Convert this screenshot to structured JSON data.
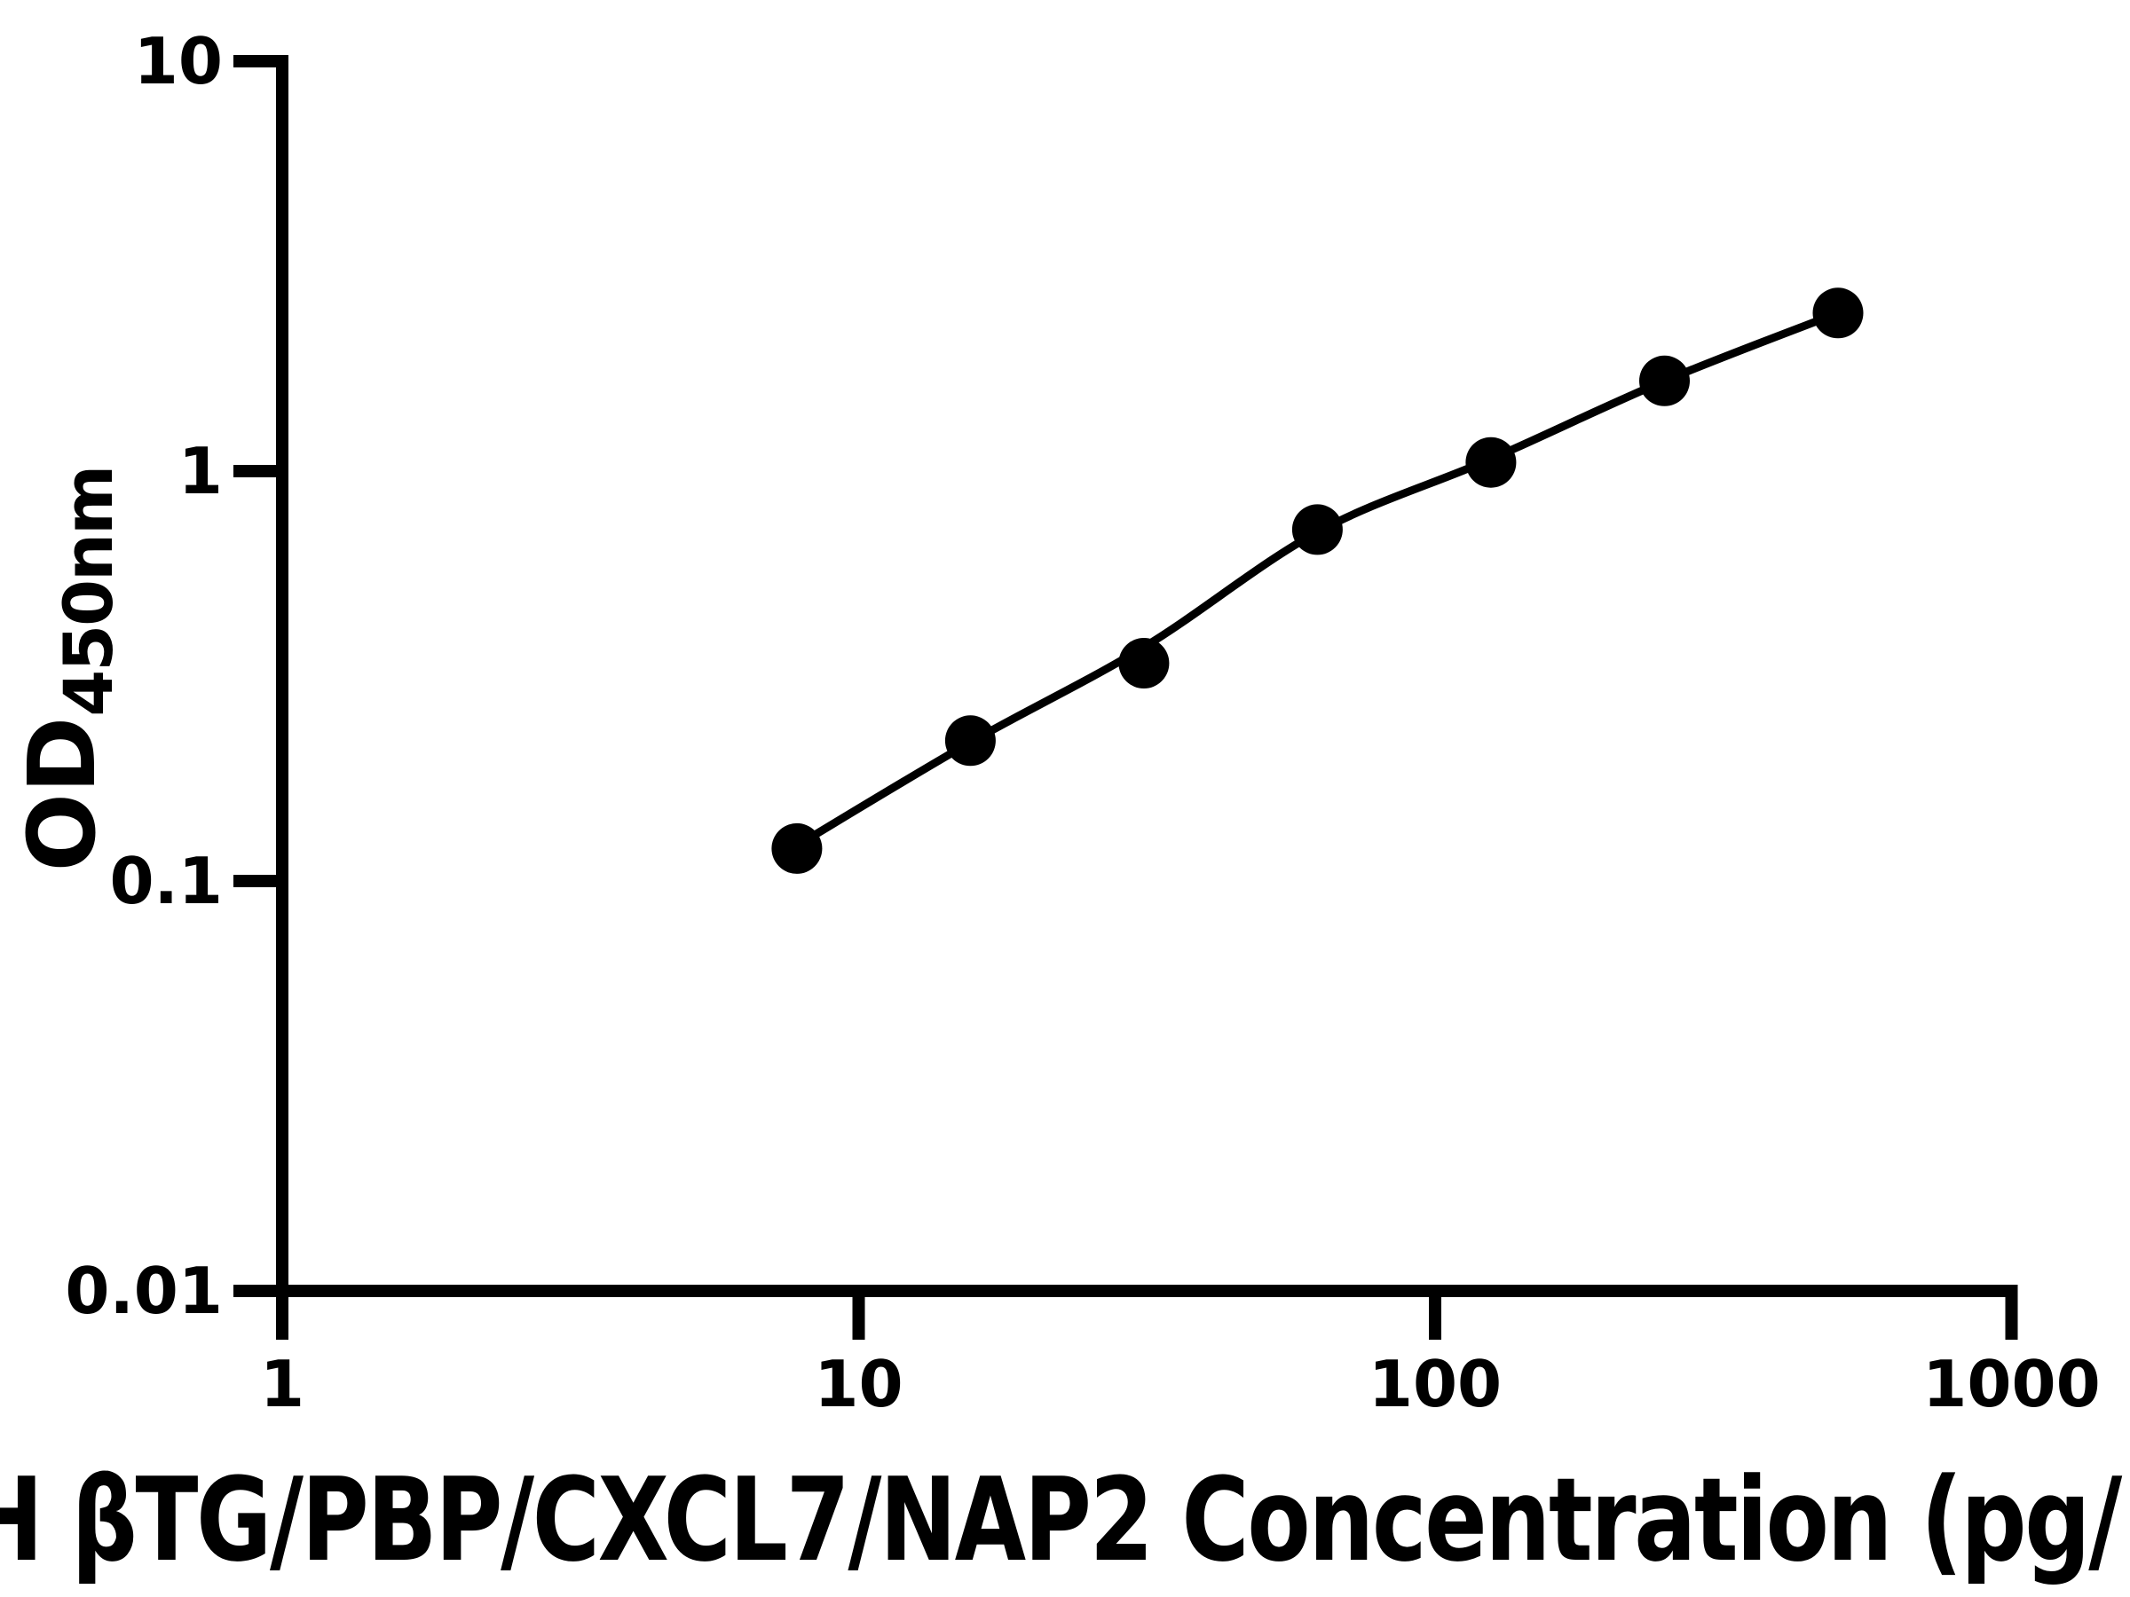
{
  "chart_data": {
    "type": "scatter",
    "description": "ELISA standard curve, log-log axes, black dots with fitted line",
    "xlabel_visible": "H βTG/PBP/CXCL7/NAP2 Concentration (pg/",
    "xlabel_clipped": true,
    "ylabel_main": "OD",
    "ylabel_sub": "450nm",
    "x_scale": "log",
    "y_scale": "log",
    "xlim": [
      1,
      1000
    ],
    "ylim": [
      0.01,
      10
    ],
    "grid": false,
    "legend": null,
    "x_ticks": [
      {
        "label": "1",
        "value": 1
      },
      {
        "label": "10",
        "value": 10
      },
      {
        "label": "100",
        "value": 100
      },
      {
        "label": "1000",
        "value": 1000
      }
    ],
    "y_ticks": [
      {
        "label": "10",
        "value": 10
      },
      {
        "label": "1",
        "value": 1
      },
      {
        "label": "0.1",
        "value": 0.1
      },
      {
        "label": "0.01",
        "value": 0.01
      }
    ],
    "series": [
      {
        "name": "standard-points",
        "marker": "filled-circle",
        "color": "#000000",
        "points": [
          {
            "x": 7.8125,
            "y": 0.12
          },
          {
            "x": 15.625,
            "y": 0.22
          },
          {
            "x": 31.25,
            "y": 0.34
          },
          {
            "x": 62.5,
            "y": 0.72
          },
          {
            "x": 125,
            "y": 1.05
          },
          {
            "x": 250,
            "y": 1.66
          },
          {
            "x": 500,
            "y": 2.43
          }
        ]
      }
    ],
    "fit_curve": [
      {
        "x": 7.8125,
        "y": 0.122
      },
      {
        "x": 15.625,
        "y": 0.218
      },
      {
        "x": 31.25,
        "y": 0.372
      },
      {
        "x": 62.5,
        "y": 0.71
      },
      {
        "x": 125,
        "y": 1.07
      },
      {
        "x": 250,
        "y": 1.66
      },
      {
        "x": 500,
        "y": 2.43
      }
    ],
    "colors": {
      "axis": "#000000",
      "marker": "#000000",
      "line": "#000000",
      "background": "#ffffff"
    }
  }
}
